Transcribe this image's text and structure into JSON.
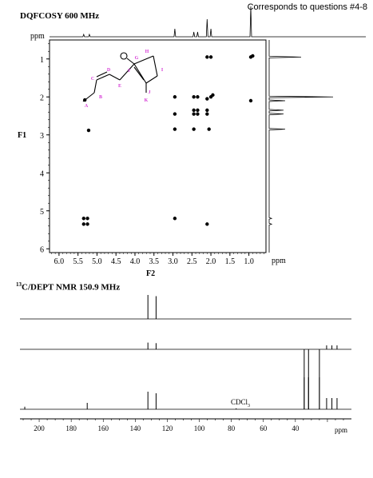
{
  "note": "Corresponds to questions #4-8",
  "cosy": {
    "title": "DQFCOSY 600 MHz",
    "ppm_label": "ppm",
    "f1_label": "F1",
    "f2_label": "F2",
    "f2_ppm_label": "ppm",
    "f1_ticks": [
      "1",
      "2",
      "3",
      "4",
      "5",
      "6"
    ],
    "f2_ticks": [
      "6.0",
      "5.5",
      "5.0",
      "4.5",
      "4.0",
      "3.5",
      "3.0",
      "2.5",
      "2.0",
      "1.5",
      "1.0"
    ],
    "structure_labels": [
      "A",
      "B",
      "C",
      "D",
      "E",
      "F",
      "G",
      "H",
      "I",
      "J",
      "K"
    ]
  },
  "dept": {
    "title_sup": "13",
    "title_main": "C/DEPT NMR 150.9 MHz",
    "solvent_main": "CDCl",
    "solvent_sub": "3",
    "x_ticks": [
      "200",
      "180",
      "160",
      "140",
      "120",
      "100",
      "80",
      "60",
      "40"
    ],
    "ppm_label": "ppm"
  },
  "chart_data": [
    {
      "type": "scatter",
      "title": "DQFCOSY 600 MHz",
      "xlabel": "F2",
      "ylabel": "F1",
      "xlim": [
        6.25,
        0.55
      ],
      "ylim": [
        0.5,
        6.1
      ],
      "points": [
        {
          "x": 5.32,
          "y": 2.08
        },
        {
          "x": 5.22,
          "y": 2.88
        },
        {
          "x": 2.95,
          "y": 2.0
        },
        {
          "x": 2.95,
          "y": 2.45
        },
        {
          "x": 2.95,
          "y": 2.85
        },
        {
          "x": 2.95,
          "y": 5.2
        },
        {
          "x": 2.45,
          "y": 2.0
        },
        {
          "x": 2.35,
          "y": 2.0
        },
        {
          "x": 2.45,
          "y": 2.35
        },
        {
          "x": 2.35,
          "y": 2.35
        },
        {
          "x": 2.45,
          "y": 2.45
        },
        {
          "x": 2.35,
          "y": 2.45
        },
        {
          "x": 2.45,
          "y": 2.85
        },
        {
          "x": 2.1,
          "y": 0.95
        },
        {
          "x": 2.0,
          "y": 0.95
        },
        {
          "x": 2.1,
          "y": 2.05
        },
        {
          "x": 2.0,
          "y": 2.0
        },
        {
          "x": 1.95,
          "y": 1.95
        },
        {
          "x": 2.1,
          "y": 2.35
        },
        {
          "x": 2.1,
          "y": 2.45
        },
        {
          "x": 2.05,
          "y": 2.85
        },
        {
          "x": 2.1,
          "y": 5.35
        },
        {
          "x": 0.95,
          "y": 0.95
        },
        {
          "x": 0.9,
          "y": 0.92
        },
        {
          "x": 0.95,
          "y": 2.1
        },
        {
          "x": 5.35,
          "y": 5.2
        },
        {
          "x": 5.25,
          "y": 5.2
        },
        {
          "x": 5.35,
          "y": 5.35
        },
        {
          "x": 5.25,
          "y": 5.35
        }
      ],
      "f1_projection_peaks_ppm": [
        0.95,
        2.0,
        2.1,
        2.35,
        2.45,
        2.85,
        5.2,
        5.35
      ],
      "f2_projection_peaks_ppm": [
        5.35,
        5.2,
        2.95,
        2.45,
        2.35,
        2.1,
        2.0,
        0.95
      ]
    },
    {
      "type": "line",
      "title": "13C/DEPT NMR 150.9 MHz",
      "xlabel": "ppm",
      "xlim": [
        212,
        5
      ],
      "series": [
        {
          "peaks": [
            {
              "x": 132.1,
              "h": 1.0
            },
            {
              "x": 127.0,
              "h": 0.95
            }
          ]
        },
        {
          "peaks": [
            {
              "x": 132.1,
              "h": 0.6
            },
            {
              "x": 127.0,
              "h": 0.55
            },
            {
              "x": 34.5,
              "h": -1.0
            },
            {
              "x": 31.8,
              "h": -1.0
            },
            {
              "x": 25.0,
              "h": -1.0
            },
            {
              "x": 20.5,
              "h": 0.35
            },
            {
              "x": 17.2,
              "h": 0.35
            },
            {
              "x": 14.0,
              "h": 0.35
            }
          ]
        },
        {
          "peaks": [
            {
              "x": 209.0,
              "h": 0.08
            },
            {
              "x": 170.0,
              "h": 0.2
            },
            {
              "x": 132.1,
              "h": 0.55
            },
            {
              "x": 127.0,
              "h": 0.5
            },
            {
              "x": 77.0,
              "h": 0.03
            },
            {
              "x": 34.5,
              "h": 1.0
            },
            {
              "x": 31.8,
              "h": 1.0
            },
            {
              "x": 25.0,
              "h": 1.0
            },
            {
              "x": 20.5,
              "h": 0.35
            },
            {
              "x": 17.2,
              "h": 0.35
            },
            {
              "x": 14.0,
              "h": 0.35
            }
          ]
        }
      ],
      "annotations": [
        "CDCl3"
      ]
    }
  ]
}
